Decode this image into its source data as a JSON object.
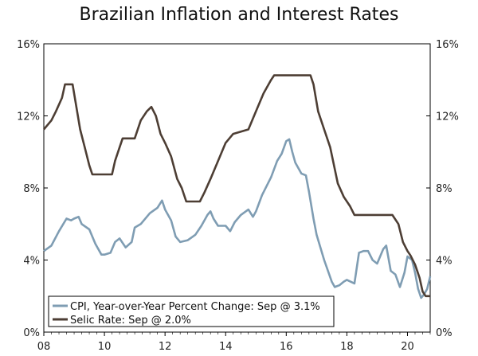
{
  "chart_data": {
    "type": "line",
    "title": "Brazilian Inflation and Interest Rates",
    "xlabel": "",
    "ylabel": "",
    "xlim": [
      2008,
      2020.75
    ],
    "ylim": [
      0,
      16
    ],
    "x_ticks": [
      2008,
      2010,
      2012,
      2014,
      2016,
      2018,
      2020
    ],
    "x_tick_labels": [
      "08",
      "10",
      "12",
      "14",
      "16",
      "18",
      "20"
    ],
    "y_ticks": [
      0,
      4,
      8,
      12,
      16
    ],
    "y_tick_labels": [
      "0%",
      "4%",
      "8%",
      "12%",
      "16%"
    ],
    "grid": false,
    "legend_position": "bottom-left",
    "series": [
      {
        "name": "CPI, Year-over-Year Percent Change: Sep @ 3.1%",
        "color": "#7f9db3",
        "points": [
          [
            2008.0,
            4.5
          ],
          [
            2008.25,
            4.8
          ],
          [
            2008.5,
            5.6
          ],
          [
            2008.75,
            6.3
          ],
          [
            2008.9,
            6.2
          ],
          [
            2009.0,
            6.3
          ],
          [
            2009.15,
            6.4
          ],
          [
            2009.25,
            6.0
          ],
          [
            2009.5,
            5.7
          ],
          [
            2009.7,
            4.9
          ],
          [
            2009.9,
            4.3
          ],
          [
            2010.0,
            4.3
          ],
          [
            2010.2,
            4.4
          ],
          [
            2010.35,
            5.0
          ],
          [
            2010.5,
            5.2
          ],
          [
            2010.7,
            4.7
          ],
          [
            2010.9,
            5.0
          ],
          [
            2011.0,
            5.8
          ],
          [
            2011.2,
            6.0
          ],
          [
            2011.5,
            6.6
          ],
          [
            2011.75,
            6.9
          ],
          [
            2011.9,
            7.3
          ],
          [
            2012.0,
            6.8
          ],
          [
            2012.2,
            6.2
          ],
          [
            2012.35,
            5.3
          ],
          [
            2012.5,
            5.0
          ],
          [
            2012.75,
            5.1
          ],
          [
            2013.0,
            5.4
          ],
          [
            2013.2,
            5.9
          ],
          [
            2013.4,
            6.5
          ],
          [
            2013.5,
            6.7
          ],
          [
            2013.6,
            6.3
          ],
          [
            2013.75,
            5.9
          ],
          [
            2014.0,
            5.9
          ],
          [
            2014.15,
            5.6
          ],
          [
            2014.3,
            6.1
          ],
          [
            2014.5,
            6.5
          ],
          [
            2014.75,
            6.8
          ],
          [
            2014.9,
            6.4
          ],
          [
            2015.0,
            6.7
          ],
          [
            2015.2,
            7.6
          ],
          [
            2015.5,
            8.6
          ],
          [
            2015.7,
            9.5
          ],
          [
            2015.85,
            9.9
          ],
          [
            2016.0,
            10.6
          ],
          [
            2016.1,
            10.7
          ],
          [
            2016.2,
            10.0
          ],
          [
            2016.3,
            9.4
          ],
          [
            2016.5,
            8.8
          ],
          [
            2016.65,
            8.7
          ],
          [
            2016.75,
            7.8
          ],
          [
            2016.9,
            6.3
          ],
          [
            2017.0,
            5.4
          ],
          [
            2017.25,
            4.0
          ],
          [
            2017.5,
            2.8
          ],
          [
            2017.6,
            2.5
          ],
          [
            2017.75,
            2.6
          ],
          [
            2017.9,
            2.8
          ],
          [
            2018.0,
            2.9
          ],
          [
            2018.25,
            2.7
          ],
          [
            2018.4,
            4.4
          ],
          [
            2018.55,
            4.5
          ],
          [
            2018.7,
            4.5
          ],
          [
            2018.85,
            4.0
          ],
          [
            2019.0,
            3.8
          ],
          [
            2019.2,
            4.6
          ],
          [
            2019.3,
            4.8
          ],
          [
            2019.45,
            3.4
          ],
          [
            2019.6,
            3.2
          ],
          [
            2019.75,
            2.5
          ],
          [
            2019.9,
            3.3
          ],
          [
            2020.0,
            4.2
          ],
          [
            2020.15,
            4.0
          ],
          [
            2020.25,
            3.3
          ],
          [
            2020.35,
            2.4
          ],
          [
            2020.45,
            1.9
          ],
          [
            2020.55,
            2.1
          ],
          [
            2020.65,
            2.4
          ],
          [
            2020.75,
            3.1
          ]
        ]
      },
      {
        "name": "Selic Rate: Sep @ 2.0%",
        "color": "#4d3e34",
        "points": [
          [
            2008.0,
            11.25
          ],
          [
            2008.25,
            11.75
          ],
          [
            2008.4,
            12.25
          ],
          [
            2008.6,
            13.0
          ],
          [
            2008.7,
            13.75
          ],
          [
            2008.95,
            13.75
          ],
          [
            2009.05,
            12.75
          ],
          [
            2009.2,
            11.25
          ],
          [
            2009.35,
            10.25
          ],
          [
            2009.5,
            9.25
          ],
          [
            2009.6,
            8.75
          ],
          [
            2010.25,
            8.75
          ],
          [
            2010.35,
            9.5
          ],
          [
            2010.5,
            10.25
          ],
          [
            2010.6,
            10.75
          ],
          [
            2011.0,
            10.75
          ],
          [
            2011.2,
            11.75
          ],
          [
            2011.4,
            12.25
          ],
          [
            2011.55,
            12.5
          ],
          [
            2011.7,
            12.0
          ],
          [
            2011.85,
            11.0
          ],
          [
            2012.0,
            10.5
          ],
          [
            2012.2,
            9.75
          ],
          [
            2012.4,
            8.5
          ],
          [
            2012.55,
            8.0
          ],
          [
            2012.7,
            7.25
          ],
          [
            2013.15,
            7.25
          ],
          [
            2013.3,
            7.75
          ],
          [
            2013.5,
            8.5
          ],
          [
            2013.75,
            9.5
          ],
          [
            2014.0,
            10.5
          ],
          [
            2014.25,
            11.0
          ],
          [
            2014.75,
            11.25
          ],
          [
            2015.0,
            12.25
          ],
          [
            2015.25,
            13.25
          ],
          [
            2015.5,
            14.0
          ],
          [
            2015.6,
            14.25
          ],
          [
            2016.8,
            14.25
          ],
          [
            2016.9,
            13.75
          ],
          [
            2017.05,
            12.25
          ],
          [
            2017.25,
            11.25
          ],
          [
            2017.45,
            10.25
          ],
          [
            2017.7,
            8.25
          ],
          [
            2017.9,
            7.5
          ],
          [
            2018.1,
            7.0
          ],
          [
            2018.25,
            6.5
          ],
          [
            2019.5,
            6.5
          ],
          [
            2019.7,
            6.0
          ],
          [
            2019.85,
            5.0
          ],
          [
            2020.0,
            4.5
          ],
          [
            2020.1,
            4.25
          ],
          [
            2020.25,
            3.75
          ],
          [
            2020.4,
            3.0
          ],
          [
            2020.5,
            2.25
          ],
          [
            2020.6,
            2.0
          ],
          [
            2020.75,
            2.0
          ]
        ]
      }
    ]
  }
}
